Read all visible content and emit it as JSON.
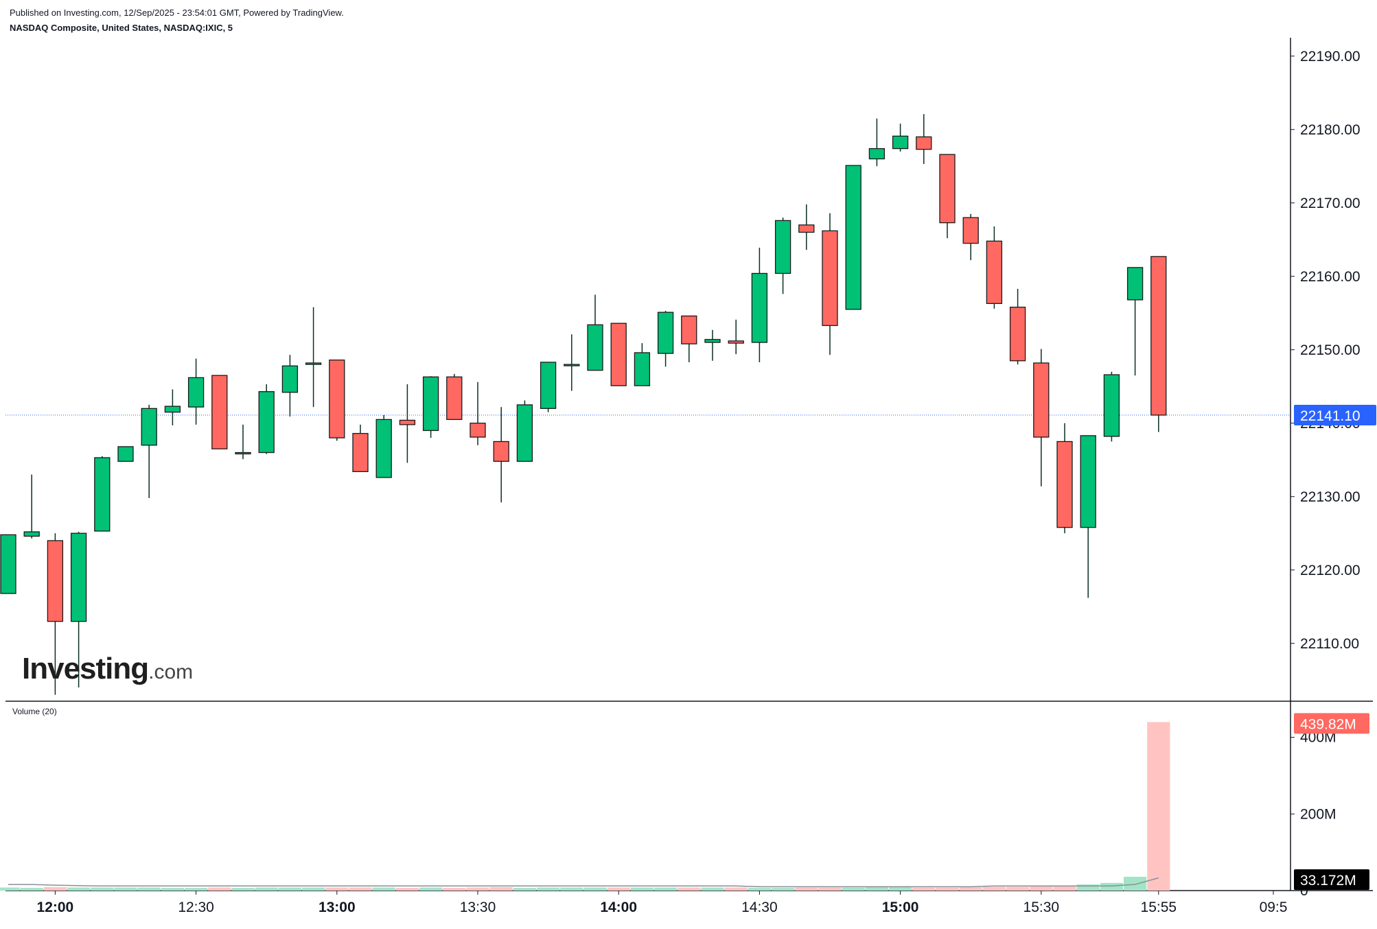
{
  "header": {
    "published": "Published on Investing.com, 12/Sep/2025 - 23:54:01 GMT, Powered by TradingView.",
    "symbol": "NASDAQ Composite, United States, NASDAQ:IXIC, 5"
  },
  "logo": {
    "brand": "Investing",
    "suffix": ".com"
  },
  "volume_label": "Volume (20)",
  "colors": {
    "up": "#00c176",
    "down": "#ff6961",
    "last_price": "#2962ff",
    "volume_up": "#a3e4c7",
    "volume_down": "#ffc4c1"
  },
  "chart_data": [
    {
      "type": "candlestick",
      "title": "NASDAQ Composite, United States, NASDAQ:IXIC, 5",
      "x_tick_labels": [
        "12:00",
        "12:30",
        "13:00",
        "13:30",
        "14:00",
        "14:30",
        "15:00",
        "15:30",
        "15:55",
        "09:5"
      ],
      "y_tick_labels": [
        "22110.00",
        "22120.00",
        "22130.00",
        "22140.00",
        "22150.00",
        "22160.00",
        "22170.00",
        "22180.00",
        "22190.00"
      ],
      "ylim": [
        22102.5,
        22192.5
      ],
      "last_price": 22141.1,
      "last_price_label": "22141.10",
      "candles": [
        {
          "t": "11:50",
          "o": 22116.8,
          "h": 22124.8,
          "l": 22116.8,
          "c": 22124.8
        },
        {
          "t": "11:55",
          "o": 22124.6,
          "h": 22133.0,
          "l": 22124.3,
          "c": 22125.2
        },
        {
          "t": "12:00",
          "o": 22124.0,
          "h": 22125.0,
          "l": 22103.0,
          "c": 22113.0
        },
        {
          "t": "12:05",
          "o": 22113.0,
          "h": 22125.2,
          "l": 22104.0,
          "c": 22125.0
        },
        {
          "t": "12:10",
          "o": 22125.3,
          "h": 22135.5,
          "l": 22125.3,
          "c": 22135.3
        },
        {
          "t": "12:15",
          "o": 22134.8,
          "h": 22136.8,
          "l": 22134.8,
          "c": 22136.8
        },
        {
          "t": "12:20",
          "o": 22137.0,
          "h": 22142.5,
          "l": 22129.8,
          "c": 22142.0
        },
        {
          "t": "12:25",
          "o": 22141.5,
          "h": 22144.6,
          "l": 22139.7,
          "c": 22142.3
        },
        {
          "t": "12:30",
          "o": 22142.2,
          "h": 22148.8,
          "l": 22139.8,
          "c": 22146.2
        },
        {
          "t": "12:35",
          "o": 22146.5,
          "h": 22146.5,
          "l": 22136.5,
          "c": 22136.5
        },
        {
          "t": "12:40",
          "o": 22136.0,
          "h": 22139.8,
          "l": 22135.1,
          "c": 22136.0
        },
        {
          "t": "12:45",
          "o": 22136.0,
          "h": 22145.3,
          "l": 22135.8,
          "c": 22144.3
        },
        {
          "t": "12:50",
          "o": 22144.2,
          "h": 22149.3,
          "l": 22140.9,
          "c": 22147.8
        },
        {
          "t": "12:55",
          "o": 22148.0,
          "h": 22155.8,
          "l": 22142.2,
          "c": 22148.2
        },
        {
          "t": "13:00",
          "o": 22148.6,
          "h": 22148.6,
          "l": 22137.6,
          "c": 22138.0
        },
        {
          "t": "13:05",
          "o": 22138.6,
          "h": 22139.8,
          "l": 22133.4,
          "c": 22133.4
        },
        {
          "t": "13:10",
          "o": 22132.6,
          "h": 22141.1,
          "l": 22132.6,
          "c": 22140.5
        },
        {
          "t": "13:15",
          "o": 22140.4,
          "h": 22145.3,
          "l": 22134.6,
          "c": 22139.8
        },
        {
          "t": "13:20",
          "o": 22139.0,
          "h": 22146.4,
          "l": 22138.0,
          "c": 22146.3
        },
        {
          "t": "13:25",
          "o": 22146.3,
          "h": 22146.7,
          "l": 22140.5,
          "c": 22140.5
        },
        {
          "t": "13:30",
          "o": 22140.0,
          "h": 22145.6,
          "l": 22137.0,
          "c": 22138.1
        },
        {
          "t": "13:35",
          "o": 22137.5,
          "h": 22142.2,
          "l": 22129.2,
          "c": 22134.8
        },
        {
          "t": "13:40",
          "o": 22134.8,
          "h": 22143.1,
          "l": 22134.8,
          "c": 22142.5
        },
        {
          "t": "13:45",
          "o": 22142.0,
          "h": 22148.3,
          "l": 22141.5,
          "c": 22148.3
        },
        {
          "t": "13:50",
          "o": 22148.0,
          "h": 22152.1,
          "l": 22144.4,
          "c": 22148.0
        },
        {
          "t": "13:55",
          "o": 22147.2,
          "h": 22157.5,
          "l": 22147.2,
          "c": 22153.4
        },
        {
          "t": "14:00",
          "o": 22153.6,
          "h": 22153.6,
          "l": 22145.1,
          "c": 22145.1
        },
        {
          "t": "14:05",
          "o": 22145.1,
          "h": 22150.9,
          "l": 22145.1,
          "c": 22149.6
        },
        {
          "t": "14:10",
          "o": 22149.5,
          "h": 22155.3,
          "l": 22147.7,
          "c": 22155.1
        },
        {
          "t": "14:15",
          "o": 22154.6,
          "h": 22154.6,
          "l": 22148.3,
          "c": 22150.8
        },
        {
          "t": "14:20",
          "o": 22151.0,
          "h": 22152.7,
          "l": 22148.5,
          "c": 22151.4
        },
        {
          "t": "14:25",
          "o": 22151.2,
          "h": 22154.1,
          "l": 22149.4,
          "c": 22150.9
        },
        {
          "t": "14:30",
          "o": 22151.0,
          "h": 22163.9,
          "l": 22148.3,
          "c": 22160.4
        },
        {
          "t": "14:35",
          "o": 22160.4,
          "h": 22168.0,
          "l": 22157.6,
          "c": 22167.6
        },
        {
          "t": "14:40",
          "o": 22167.0,
          "h": 22169.8,
          "l": 22163.6,
          "c": 22166.0
        },
        {
          "t": "14:45",
          "o": 22166.2,
          "h": 22168.6,
          "l": 22149.3,
          "c": 22153.3
        },
        {
          "t": "14:50",
          "o": 22155.5,
          "h": 22175.1,
          "l": 22155.5,
          "c": 22175.1
        },
        {
          "t": "14:55",
          "o": 22176.0,
          "h": 22181.5,
          "l": 22175.0,
          "c": 22177.4
        },
        {
          "t": "15:00",
          "o": 22177.4,
          "h": 22180.8,
          "l": 22177.0,
          "c": 22179.1
        },
        {
          "t": "15:05",
          "o": 22179.0,
          "h": 22182.1,
          "l": 22175.3,
          "c": 22177.3
        },
        {
          "t": "15:10",
          "o": 22176.6,
          "h": 22176.6,
          "l": 22165.2,
          "c": 22167.3
        },
        {
          "t": "15:15",
          "o": 22168.0,
          "h": 22168.5,
          "l": 22162.2,
          "c": 22164.5
        },
        {
          "t": "15:20",
          "o": 22164.8,
          "h": 22166.8,
          "l": 22155.6,
          "c": 22156.3
        },
        {
          "t": "15:25",
          "o": 22155.8,
          "h": 22158.3,
          "l": 22148.0,
          "c": 22148.5
        },
        {
          "t": "15:30",
          "o": 22148.2,
          "h": 22150.1,
          "l": 22131.4,
          "c": 22138.1
        },
        {
          "t": "15:35",
          "o": 22137.5,
          "h": 22140.0,
          "l": 22125.0,
          "c": 22125.8
        },
        {
          "t": "15:40",
          "o": 22125.8,
          "h": 22138.3,
          "l": 22116.2,
          "c": 22138.3
        },
        {
          "t": "15:45",
          "o": 22138.2,
          "h": 22147.0,
          "l": 22137.5,
          "c": 22146.6
        },
        {
          "t": "15:50",
          "o": 22156.8,
          "h": 22161.2,
          "l": 22146.5,
          "c": 22161.2
        },
        {
          "t": "15:55",
          "o": 22162.7,
          "h": 22162.7,
          "l": 22138.8,
          "c": 22141.1
        }
      ]
    },
    {
      "type": "bar",
      "title": "Volume (20)",
      "y_tick_labels": [
        "0",
        "200M",
        "400M"
      ],
      "ylim": [
        0,
        480
      ],
      "unit": "M",
      "last_volume_label": "439.82M",
      "ma_label": "33.172M",
      "values": [
        8,
        7,
        9,
        8,
        8,
        8,
        8,
        7,
        7,
        8,
        7,
        8,
        8,
        8,
        8,
        8,
        8,
        7,
        8,
        7,
        8,
        9,
        7,
        8,
        8,
        8,
        8,
        8,
        8,
        8,
        8,
        8,
        7,
        7,
        8,
        8,
        8,
        9,
        9,
        8,
        8,
        9,
        10,
        10,
        11,
        11,
        16,
        20,
        36,
        439.82
      ],
      "ma": [
        16,
        16,
        14,
        13,
        12,
        12,
        12,
        12,
        12,
        12,
        12,
        12,
        12,
        12,
        12,
        12,
        12,
        12,
        12,
        12,
        12,
        12,
        12,
        12,
        12,
        12,
        12,
        12,
        12,
        12,
        12,
        12,
        10,
        10,
        10,
        10,
        10,
        10,
        10,
        10,
        10,
        10,
        12,
        12,
        12,
        12,
        12,
        12,
        16,
        33.172
      ]
    }
  ]
}
